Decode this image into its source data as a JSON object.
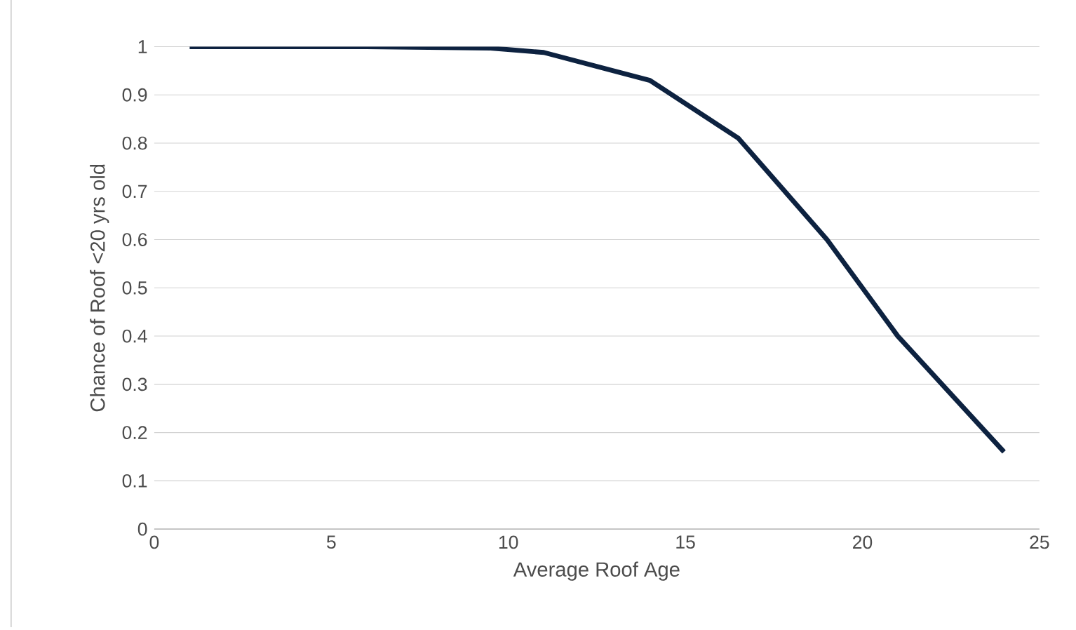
{
  "chart_data": {
    "type": "line",
    "xlabel": "Average Roof Age",
    "ylabel": "Chance of Roof <20 yrs old",
    "x": [
      1,
      6,
      9.5,
      11,
      14,
      16.5,
      19,
      21,
      24
    ],
    "series": [
      {
        "color": "#0d2240",
        "values": [
          1,
          1,
          0.997,
          0.988,
          0.93,
          0.81,
          0.6,
          0.4,
          0.16
        ]
      }
    ],
    "xlim": [
      0,
      25
    ],
    "ylim": [
      0,
      1
    ],
    "xticks": [
      0,
      5,
      10,
      15,
      20,
      25
    ],
    "yticks": [
      0,
      0.1,
      0.2,
      0.3,
      0.4,
      0.5,
      0.6,
      0.7,
      0.8,
      0.9,
      1
    ],
    "grid": "y",
    "marker": "none",
    "line_style": "solid"
  }
}
